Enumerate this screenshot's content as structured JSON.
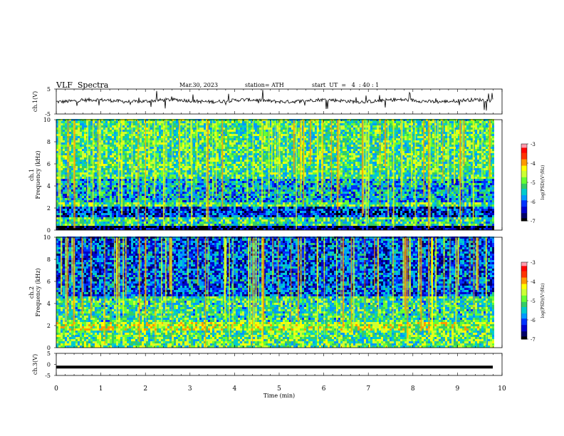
{
  "header": {
    "title": "VLF  Spectra",
    "date": "Mar.30, 2023",
    "station": "station= ATH",
    "start_ut": "start  UT  =   4  : 40 : 1"
  },
  "colors": {
    "palette": [
      "#000000",
      "#000066",
      "#0000cc",
      "#0033ff",
      "#0099ff",
      "#00cccc",
      "#33cc66",
      "#66ff33",
      "#ccff33",
      "#ffff00",
      "#ff9900",
      "#ff3300",
      "#ff0000",
      "#ff99aa",
      "#ffffff"
    ],
    "trace": "#000000"
  },
  "chart_data": [
    {
      "type": "line",
      "panel": "ch1-waveform",
      "ylabel": "ch.1(V)",
      "ylim": [
        -5,
        5
      ],
      "yticks": [
        "5",
        "-5"
      ],
      "description_level": 0.3,
      "x_unit": "min",
      "x_range": [
        0,
        9.8
      ]
    },
    {
      "type": "heatmap",
      "panel": "ch1-spectrogram",
      "ylabel": "ch.1\nFrequency (kHz)",
      "ylim": [
        0,
        10
      ],
      "yticks": [
        "0",
        "2",
        "4",
        "6",
        "8",
        "10"
      ],
      "xlim": [
        0,
        10
      ],
      "x_range": [
        0,
        9.8
      ],
      "colorbar": {
        "label": "log(PSD)(V²/Hz)",
        "ticks": [
          "-3",
          "-4",
          "-5",
          "-6",
          "-7"
        ],
        "range": [
          -7,
          -3
        ]
      },
      "band_levels": [
        {
          "f": [
            0.0,
            0.3
          ],
          "level": -6.8
        },
        {
          "f": [
            0.3,
            1.0
          ],
          "level": -5.2
        },
        {
          "f": [
            1.0,
            2.0
          ],
          "level": -6.2
        },
        {
          "f": [
            2.0,
            2.4
          ],
          "level": -5.0
        },
        {
          "f": [
            2.4,
            4.5
          ],
          "level": -5.6
        },
        {
          "f": [
            4.5,
            10.0
          ],
          "level": -5.1
        }
      ]
    },
    {
      "type": "heatmap",
      "panel": "ch2-spectrogram",
      "ylabel": "ch.2\nFrequency (kHz)",
      "ylim": [
        0,
        10
      ],
      "yticks": [
        "0",
        "2",
        "4",
        "6",
        "8",
        "10"
      ],
      "xlim": [
        0,
        10
      ],
      "x_range": [
        0,
        9.8
      ],
      "colorbar": {
        "label": "log(PSD)(V²/Hz)",
        "ticks": [
          "-3",
          "-4",
          "-5",
          "-6",
          "-7"
        ],
        "range": [
          -7,
          -3
        ]
      },
      "band_levels": [
        {
          "f": [
            0.0,
            1.5
          ],
          "level": -5.0
        },
        {
          "f": [
            1.5,
            2.3
          ],
          "level": -4.6
        },
        {
          "f": [
            2.3,
            4.5
          ],
          "level": -5.2
        },
        {
          "f": [
            4.5,
            10.0
          ],
          "level": -6.0
        }
      ]
    },
    {
      "type": "line",
      "panel": "ch3-waveform",
      "ylabel": "ch.3(V)",
      "ylim": [
        -5,
        5
      ],
      "yticks": [
        "5",
        "0",
        "-5"
      ],
      "description_level": -1.2,
      "x_unit": "min",
      "x_range": [
        0,
        9.8
      ],
      "xlabel": "Time  (min)",
      "xticks": [
        "0",
        "1",
        "2",
        "3",
        "4",
        "5",
        "6",
        "7",
        "8",
        "9",
        "10"
      ]
    }
  ]
}
